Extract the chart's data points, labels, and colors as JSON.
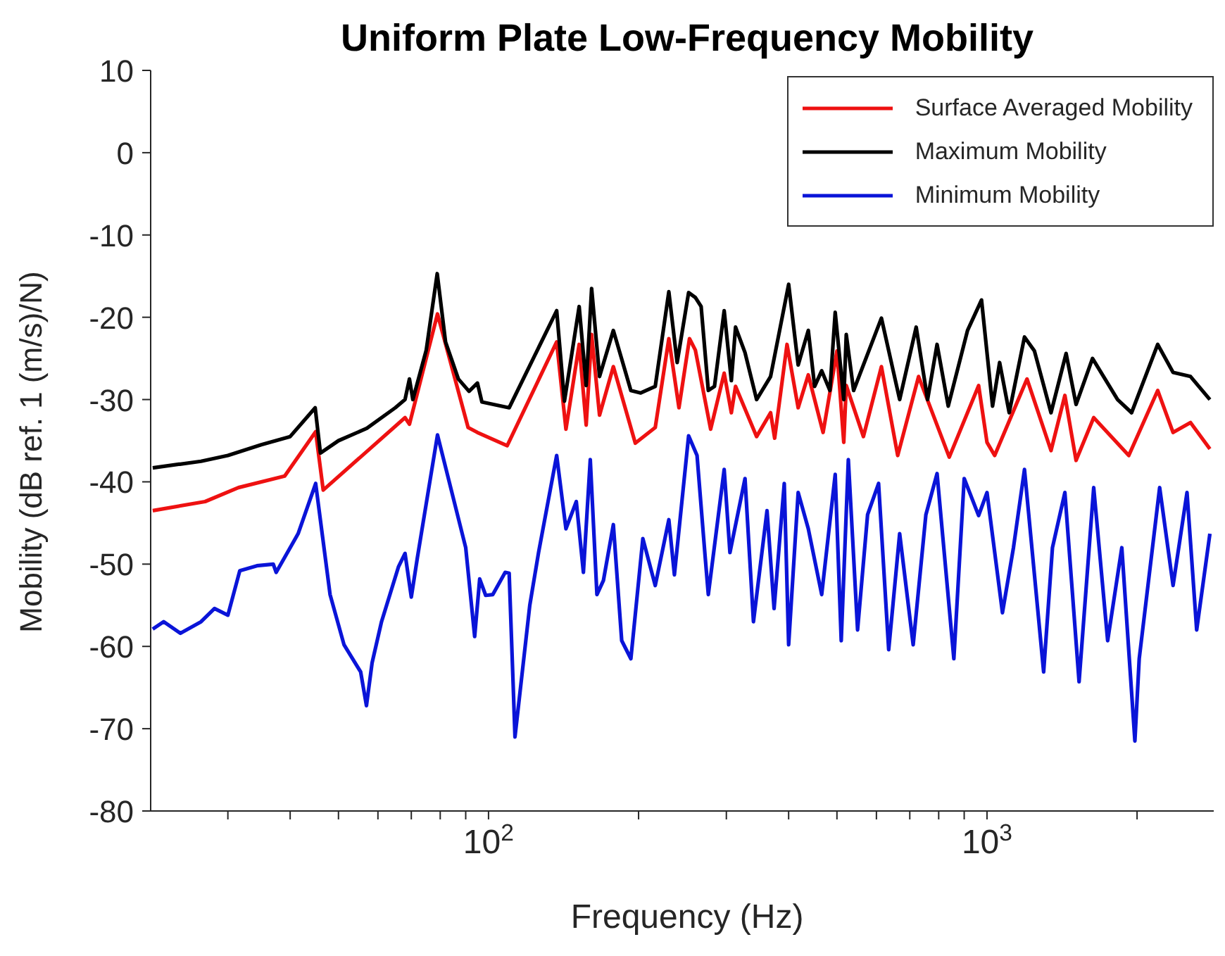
{
  "chart_data": {
    "type": "line",
    "title": "Uniform Plate Low-Frequency Mobility",
    "xlabel": "Frequency (Hz)",
    "ylabel": "Mobility (dB ref. 1 (m/s)/N)",
    "log": "x",
    "xlim": [
      21,
      2850
    ],
    "xticks": [
      {
        "value": 30,
        "label": null
      },
      {
        "value": 40,
        "label": null
      },
      {
        "value": 50,
        "label": null
      },
      {
        "value": 60,
        "label": null
      },
      {
        "value": 70,
        "label": null
      },
      {
        "value": 80,
        "label": null
      },
      {
        "value": 90,
        "label": null
      },
      {
        "value": 100,
        "label": "10$^{2}$"
      },
      {
        "value": 200,
        "label": null
      },
      {
        "value": 300,
        "label": null
      },
      {
        "value": 400,
        "label": null
      },
      {
        "value": 500,
        "label": null
      },
      {
        "value": 600,
        "label": null
      },
      {
        "value": 700,
        "label": null
      },
      {
        "value": 800,
        "label": null
      },
      {
        "value": 900,
        "label": null
      },
      {
        "value": 1000,
        "label": "10$^{3}$"
      },
      {
        "value": 2000,
        "label": null
      }
    ],
    "ylim": [
      -80,
      10
    ],
    "yticks": [
      10,
      0,
      -10,
      -20,
      -30,
      -40,
      -50,
      -60,
      -70,
      -80
    ],
    "grid": false,
    "legend": "top right",
    "marker": "none",
    "line_style": "solid",
    "series": [
      {
        "name": "Surface Averaged Mobility",
        "color": "#ee1111",
        "x": [
          21.2,
          27,
          31.5,
          39,
          45,
          46.6,
          68,
          69.4,
          79,
          91,
          95,
          109,
          137,
          143,
          152,
          157,
          161,
          167,
          178,
          197,
          216,
          230,
          241,
          253,
          260,
          279,
          297,
          307,
          313,
          345,
          368,
          375,
          397,
          418,
          438,
          469,
          500,
          516,
          522,
          565,
          614,
          662,
          729,
          840,
          962,
          1000,
          1036,
          1203,
          1344,
          1433,
          1509,
          1637,
          1925,
          2200,
          2362,
          2560,
          2800
        ],
        "values": [
          -43.5,
          -42.4,
          -40.7,
          -39.3,
          -33.9,
          -41,
          -32.2,
          -33,
          -19.6,
          -33.4,
          -34,
          -35.6,
          -23,
          -33.6,
          -23.3,
          -33.1,
          -22.1,
          -31.9,
          -26,
          -35.3,
          -33.4,
          -22.6,
          -31,
          -22.6,
          -24,
          -33.6,
          -26.8,
          -31.6,
          -28.4,
          -34.5,
          -31.6,
          -34.7,
          -23.3,
          -31,
          -27,
          -34,
          -24.1,
          -35.2,
          -28.3,
          -34.5,
          -26,
          -36.8,
          -27.2,
          -37,
          -28.3,
          -35.2,
          -36.8,
          -27.5,
          -36.2,
          -29.5,
          -37.4,
          -32.2,
          -36.8,
          -28.9,
          -34,
          -32.8,
          -36
        ]
      },
      {
        "name": "Maximum Mobility",
        "color": "#000000",
        "x": [
          21.2,
          26.5,
          30,
          35,
          40,
          44.9,
          46,
          50,
          57,
          65,
          68,
          69.4,
          70.5,
          75,
          78.9,
          82,
          87,
          91.4,
          95,
          97,
          110,
          137,
          142,
          152,
          157,
          161,
          167,
          178,
          193,
          202,
          216,
          230,
          239,
          252,
          260,
          267,
          276,
          284,
          297,
          307,
          313,
          327,
          345,
          368,
          400,
          418,
          438,
          451,
          466,
          484,
          496,
          516,
          522,
          540,
          614,
          668,
          721,
          760,
          794,
          836,
          914,
          975,
          1026,
          1060,
          1108,
          1189,
          1245,
          1344,
          1441,
          1509,
          1628,
          1828,
          1950,
          2200,
          2362,
          2560,
          2800
        ],
        "values": [
          -38.3,
          -37.5,
          -36.8,
          -35.5,
          -34.5,
          -31,
          -36.5,
          -35,
          -33.5,
          -31,
          -30,
          -27.5,
          -30,
          -24,
          -14.7,
          -23,
          -27.5,
          -29,
          -28,
          -30.3,
          -31,
          -19.2,
          -30.2,
          -18.7,
          -28.3,
          -16.5,
          -27.2,
          -21.6,
          -28.9,
          -29.2,
          -28.4,
          -16.9,
          -25.5,
          -17,
          -17.6,
          -18.7,
          -28.9,
          -28.4,
          -19.2,
          -27.7,
          -21.2,
          -24.3,
          -30,
          -27.2,
          -16,
          -25.8,
          -21.6,
          -28.4,
          -26.5,
          -28.9,
          -19.4,
          -30,
          -22.1,
          -28.9,
          -20.1,
          -30,
          -21.2,
          -30,
          -23.3,
          -30.8,
          -21.6,
          -17.9,
          -30.8,
          -25.5,
          -31.6,
          -22.4,
          -24.1,
          -31.6,
          -24.4,
          -30.6,
          -25,
          -30,
          -31.6,
          -23.3,
          -26.7,
          -27.2,
          -30
        ]
      },
      {
        "name": "Minimum Mobility",
        "color": "#0a14d8",
        "x": [
          21.2,
          22.3,
          24.1,
          26.5,
          28.2,
          30,
          31.7,
          34.3,
          37,
          37.5,
          41.5,
          45,
          48.1,
          51.3,
          55.4,
          56.9,
          58.4,
          61,
          66,
          68,
          70,
          72,
          79,
          90,
          93.8,
          96,
          98.7,
          102,
          108,
          110,
          112,
          113,
          121,
          126,
          137,
          143,
          150,
          155,
          160,
          165,
          170,
          178,
          185,
          193,
          204,
          216,
          230,
          236,
          252,
          262,
          272,
          276,
          297,
          305,
          327,
          340,
          362,
          374,
          392,
          400,
          418,
          438,
          466,
          496,
          510,
          527,
          550,
          576,
          606,
          635,
          668,
          711,
          754,
          794,
          858,
          900,
          962,
          1000,
          1074,
          1130,
          1189,
          1299,
          1353,
          1433,
          1530,
          1637,
          1746,
          1864,
          1980,
          2020,
          2220,
          2362,
          2519,
          2634,
          2800
        ],
        "values": [
          -57.9,
          -57,
          -58.4,
          -57,
          -55.4,
          -56.2,
          -50.8,
          -50.2,
          -50,
          -51,
          -46.3,
          -40.2,
          -53.7,
          -59.8,
          -63.1,
          -67.2,
          -62,
          -57,
          -50.3,
          -48.7,
          -54,
          -49.2,
          -34.3,
          -48,
          -58.8,
          -51.8,
          -53.8,
          -53.7,
          -51,
          -51.1,
          -64.3,
          -71,
          -55,
          -48.6,
          -36.8,
          -45.7,
          -42.4,
          -51,
          -37.3,
          -53.7,
          -52,
          -45.2,
          -59.3,
          -61.5,
          -46.9,
          -52.6,
          -44.6,
          -51.3,
          -34.4,
          -36.8,
          -49.1,
          -53.7,
          -38.5,
          -48.6,
          -39.6,
          -57,
          -43.5,
          -55.4,
          -40.2,
          -59.8,
          -41.3,
          -45.7,
          -53.7,
          -39.1,
          -59.3,
          -37.3,
          -58,
          -44,
          -40.2,
          -60.4,
          -46.3,
          -59.8,
          -44,
          -39,
          -61.5,
          -39.6,
          -44.1,
          -41.3,
          -55.9,
          -48,
          -38.5,
          -63.1,
          -48,
          -41.3,
          -64.3,
          -40.7,
          -59.3,
          -48,
          -71.5,
          -61.5,
          -40.7,
          -52.6,
          -41.3,
          -58,
          -46.3
        ]
      }
    ]
  }
}
